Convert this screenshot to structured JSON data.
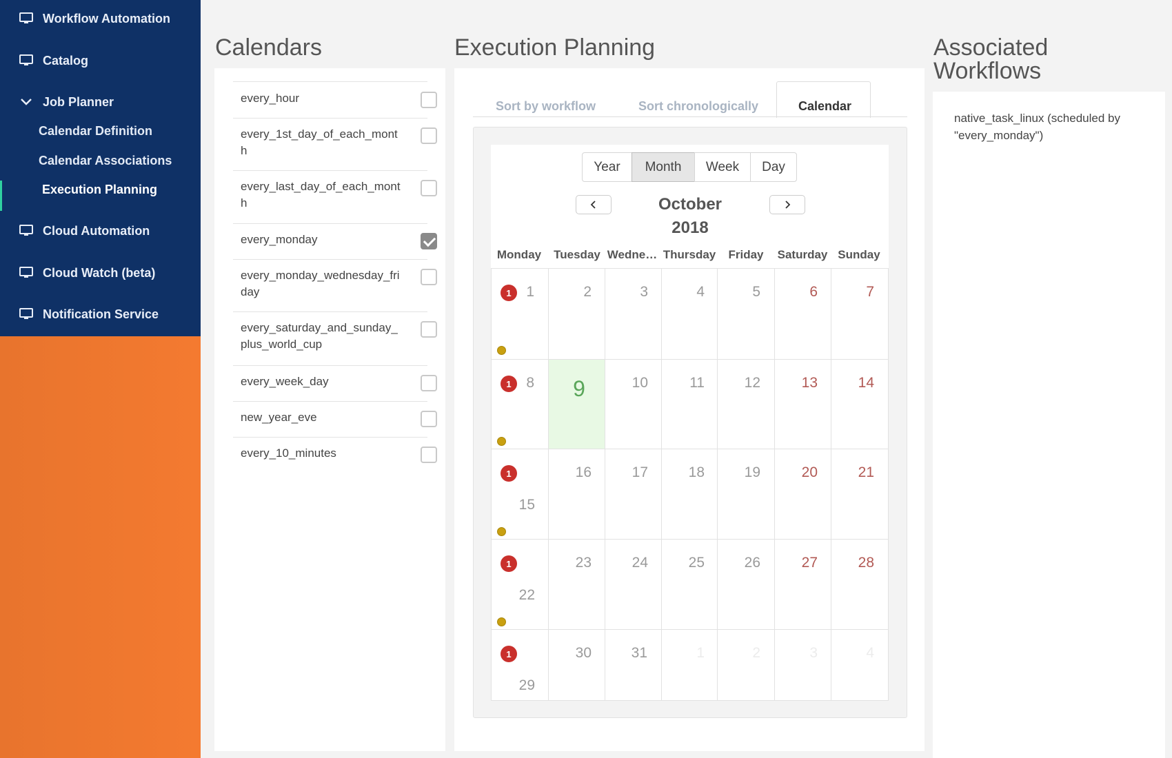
{
  "sidebar": {
    "items": [
      {
        "label": "Workflow Automation",
        "icon": "monitor-icon"
      },
      {
        "label": "Catalog",
        "icon": "monitor-icon"
      },
      {
        "label": "Job Planner",
        "icon": "chevron-down-icon"
      },
      {
        "label": "Cloud Automation",
        "icon": "monitor-icon"
      },
      {
        "label": "Cloud Watch (beta)",
        "icon": "monitor-icon"
      },
      {
        "label": "Notification Service",
        "icon": "monitor-icon"
      }
    ],
    "job_planner_sub": [
      {
        "label": "Calendar Definition"
      },
      {
        "label": "Calendar Associations"
      },
      {
        "label": "Execution Planning",
        "active": true
      }
    ],
    "nav_color": "#0f3166",
    "accent_color": "#f47a30"
  },
  "calendars": {
    "title": "Calendars",
    "items": [
      {
        "name": "every_hour",
        "checked": false
      },
      {
        "name": "every_1st_day_of_each_month",
        "checked": false
      },
      {
        "name": "every_last_day_of_each_month",
        "checked": false
      },
      {
        "name": "every_monday",
        "checked": true
      },
      {
        "name": "every_monday_wednesday_friday",
        "checked": false
      },
      {
        "name": "every_saturday_and_sunday_plus_world_cup",
        "checked": false
      },
      {
        "name": "every_week_day",
        "checked": false
      },
      {
        "name": "new_year_eve",
        "checked": false
      },
      {
        "name": "every_10_minutes",
        "checked": false
      }
    ]
  },
  "planning": {
    "title": "Execution Planning",
    "tabs": [
      {
        "label": "Sort by workflow",
        "active": false
      },
      {
        "label": "Sort chronologically",
        "active": false
      },
      {
        "label": "Calendar",
        "active": true
      }
    ],
    "calendar": {
      "views": [
        "Year",
        "Month",
        "Week",
        "Day"
      ],
      "active_view": "Month",
      "month": "October",
      "year": "2018",
      "weekdays": [
        "Monday",
        "Tuesday",
        "Wedne…",
        "Thursday",
        "Friday",
        "Saturday",
        "Sunday"
      ],
      "weeks": [
        [
          "1",
          "2",
          "3",
          "4",
          "5",
          "6",
          "7"
        ],
        [
          "8",
          "9",
          "10",
          "11",
          "12",
          "13",
          "14"
        ],
        [
          "15",
          "16",
          "17",
          "18",
          "19",
          "20",
          "21"
        ],
        [
          "22",
          "23",
          "24",
          "25",
          "26",
          "27",
          "28"
        ],
        [
          "29",
          "30",
          "31",
          "1",
          "2",
          "3",
          "4"
        ]
      ],
      "today": "9",
      "event_badge": "1",
      "event_color": "#c9302c",
      "dot_color": "#c9a011"
    }
  },
  "associated": {
    "title": "Associated Workflows",
    "text": "native_task_linux (scheduled by \"every_monday\")"
  }
}
